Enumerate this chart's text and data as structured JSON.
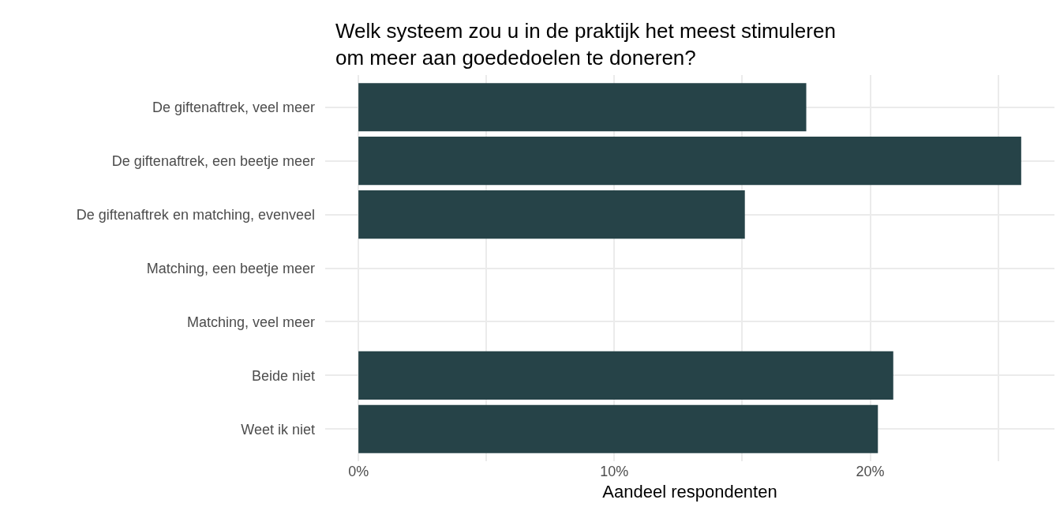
{
  "chart_data": {
    "type": "bar",
    "orientation": "horizontal",
    "title": "Welk systeem zou u in de praktijk het meest stimuleren\nom meer aan goededoelen te doneren?",
    "xlabel": "Aandeel respondenten",
    "categories": [
      "De giftenaftrek, veel meer",
      "De giftenaftrek, een beetje meer",
      "De giftenaftrek en matching, evenveel",
      "Matching, een beetje meer",
      "Matching, veel meer",
      "Beide niet",
      "Weet ik niet"
    ],
    "values": [
      17.5,
      25.9,
      15.1,
      0,
      0,
      20.9,
      20.3
    ],
    "color": "#264348",
    "xlim": [
      -1.3,
      27.2
    ],
    "xticks": [
      {
        "value": 0,
        "label": "0%"
      },
      {
        "value": 5,
        "label": null
      },
      {
        "value": 10,
        "label": "10%"
      },
      {
        "value": 15,
        "label": null
      },
      {
        "value": 20,
        "label": "20%"
      },
      {
        "value": 25,
        "label": null
      }
    ],
    "grid": true
  }
}
